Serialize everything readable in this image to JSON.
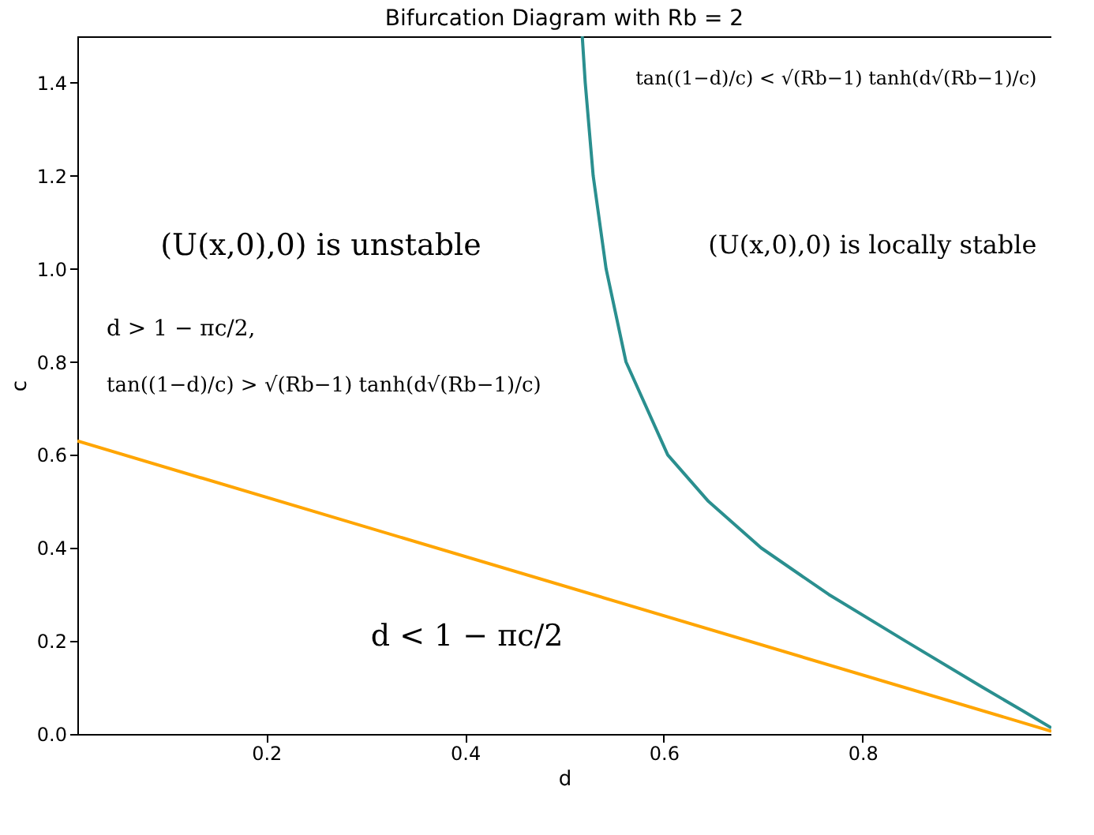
{
  "chart_data": {
    "type": "line",
    "title": "Bifurcation Diagram with Rb = 2",
    "xlabel": "d",
    "ylabel": "c",
    "xlim": [
      0.01,
      0.99
    ],
    "ylim": [
      0,
      1.5
    ],
    "xticks": [
      0.2,
      0.4,
      0.6,
      0.8
    ],
    "yticks": [
      {
        "value": 0,
        "label": "0.0"
      },
      0.2,
      0.4,
      0.6,
      0.8,
      {
        "value": 1,
        "label": "1.0"
      },
      1.2,
      1.4
    ],
    "grid": false,
    "marker": "none",
    "line_style": "solid",
    "series": [
      {
        "color": "#ffa500",
        "x": [
          0.01,
          0.99
        ],
        "values": [
          0.63,
          0.006
        ]
      },
      {
        "color": "#2a8f8f",
        "x": [
          0.518,
          0.521,
          0.529,
          0.542,
          0.562,
          0.604,
          0.645,
          0.698,
          0.766,
          0.843,
          0.921,
          0.961,
          0.99
        ],
        "values": [
          1.5,
          1.4,
          1.2,
          1.0,
          0.8,
          0.6,
          0.5,
          0.4,
          0.3,
          0.2,
          0.1,
          0.05,
          0.013
        ]
      }
    ],
    "annotations": [
      "tan((1−d)/c) < √(Rb−1) tanh(d√(Rb−1)/c)",
      "(U(x,0),0) is unstable",
      "(U(x,0),0) is locally stable",
      "d > 1 − πc/2,",
      "tan((1−d)/c) > √(Rb−1) tanh(d√(Rb−1)/c)",
      "d < 1 − πc/2"
    ]
  }
}
